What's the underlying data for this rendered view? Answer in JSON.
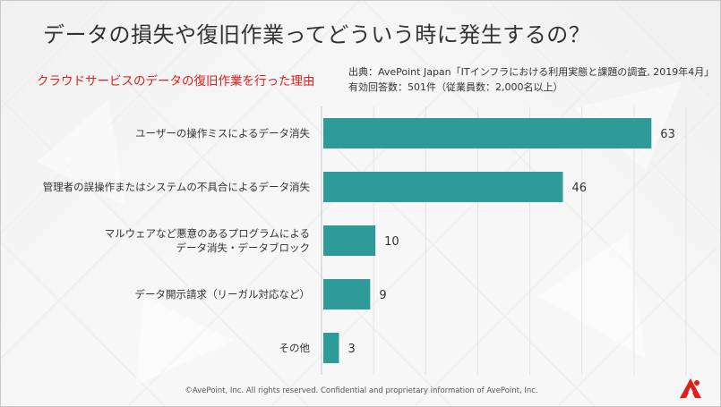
{
  "slide": {
    "title": "データの損失や復旧作業ってどういう時に発生するの？",
    "subtitle": "クラウドサービスのデータの復旧作業を行った理由",
    "source_line1": "出典：AvePoint Japan「ITインフラにおける利用実態と課題の調査, 2019年4月」",
    "source_line2": "有効回答数：501件（従業員数：2,000名以上）",
    "footer": "©AvePoint, Inc. All rights reserved. Confidential and proprietary information of AvePoint, Inc.",
    "logo_icon": "avepoint-logo-icon"
  },
  "colors": {
    "bar": "#2e9b98",
    "accent_red": "#e0201a",
    "text": "#333333"
  },
  "chart_data": {
    "type": "bar",
    "orientation": "horizontal",
    "categories": [
      [
        "ユーザーの操作ミスによるデータ消失"
      ],
      [
        "管理者の誤操作またはシステムの不具合によるデータ消失"
      ],
      [
        "マルウェアなど悪意のあるプログラムによる",
        "データ消失・データブロック"
      ],
      [
        "データ開示請求（リーガル対応など）"
      ],
      [
        "その他"
      ]
    ],
    "values": [
      63,
      46,
      10,
      9,
      3
    ],
    "value_labels": [
      "63",
      "46",
      "10",
      "9",
      "3"
    ],
    "xlim": [
      0,
      70
    ],
    "grid": true,
    "legend": "none"
  }
}
